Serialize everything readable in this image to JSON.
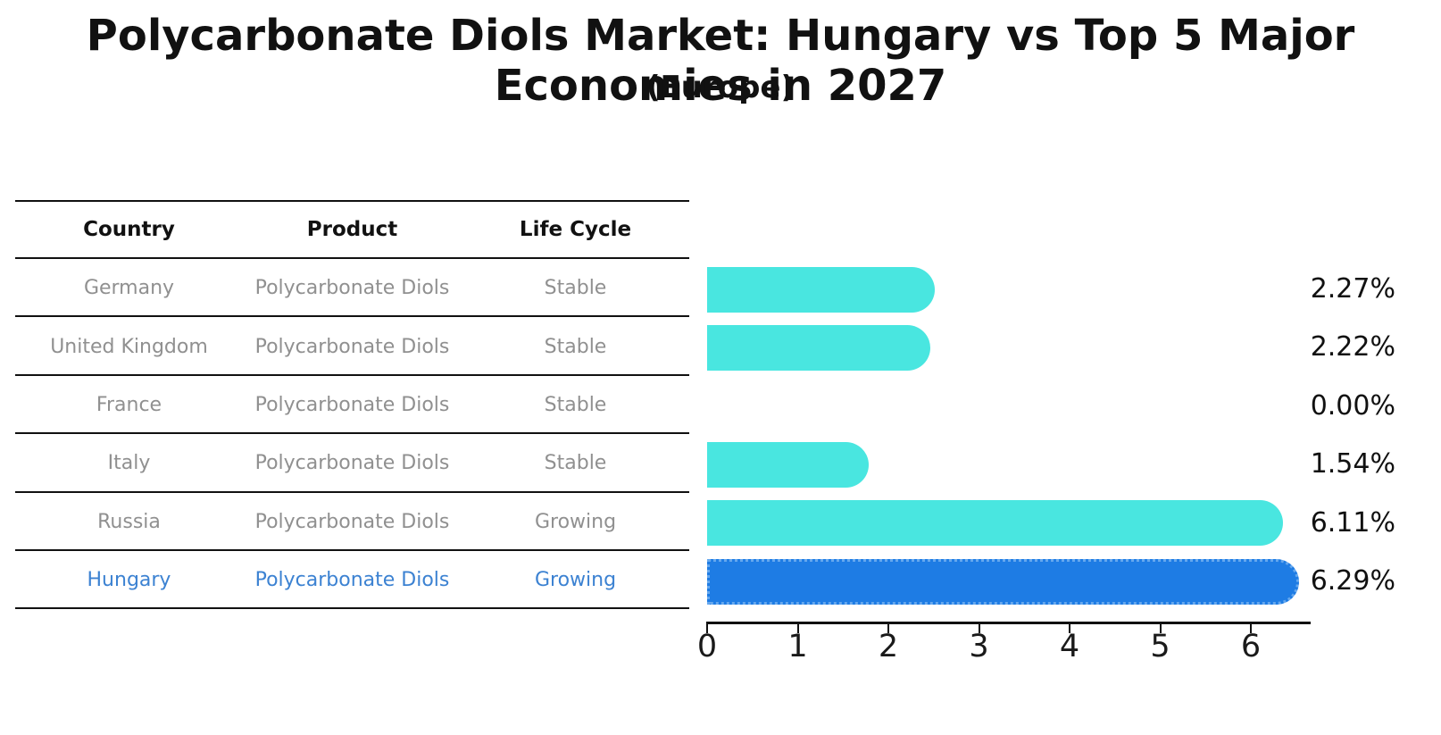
{
  "title": "Polycarbonate Diols Market: Hungary vs Top 5 Major Economies in 2027",
  "subtitle": "(Europe)",
  "table": {
    "headers": [
      "Country",
      "Product",
      "Life Cycle"
    ],
    "rows": [
      {
        "country": "Germany",
        "product": "Polycarbonate Diols",
        "life_cycle": "Stable",
        "highlight": false
      },
      {
        "country": "United Kingdom",
        "product": "Polycarbonate Diols",
        "life_cycle": "Stable",
        "highlight": false
      },
      {
        "country": "France",
        "product": "Polycarbonate Diols",
        "life_cycle": "Stable",
        "highlight": false
      },
      {
        "country": "Italy",
        "product": "Polycarbonate Diols",
        "life_cycle": "Stable",
        "highlight": false
      },
      {
        "country": "Russia",
        "product": "Polycarbonate Diols",
        "life_cycle": "Growing",
        "highlight": false
      },
      {
        "country": "Hungary",
        "product": "Polycarbonate Diols",
        "life_cycle": "Growing",
        "highlight": true
      }
    ]
  },
  "chart_data": {
    "type": "bar",
    "orientation": "horizontal",
    "title": "Polycarbonate Diols Market: Hungary vs Top 5 Major Economies in 2027",
    "subtitle": "(Europe)",
    "categories": [
      "Germany",
      "United Kingdom",
      "France",
      "Italy",
      "Russia",
      "Hungary"
    ],
    "values": [
      2.27,
      2.22,
      0.0,
      1.54,
      6.11,
      6.29
    ],
    "value_labels": [
      "2.27%",
      "2.22%",
      "0.00%",
      "1.54%",
      "6.11%",
      "6.29%"
    ],
    "x_ticks": [
      0,
      1,
      2,
      3,
      4,
      5,
      6
    ],
    "xlim": [
      0,
      6.66
    ],
    "grid": false,
    "legend": "none",
    "highlight_index": 5
  },
  "colors": {
    "bar": "#49e6e0",
    "highlight_bar": "#1e7ce4",
    "highlight_border": "#66a8ee",
    "row_text": "#909090",
    "highlight_text": "#3c82d2",
    "line": "#111111"
  }
}
